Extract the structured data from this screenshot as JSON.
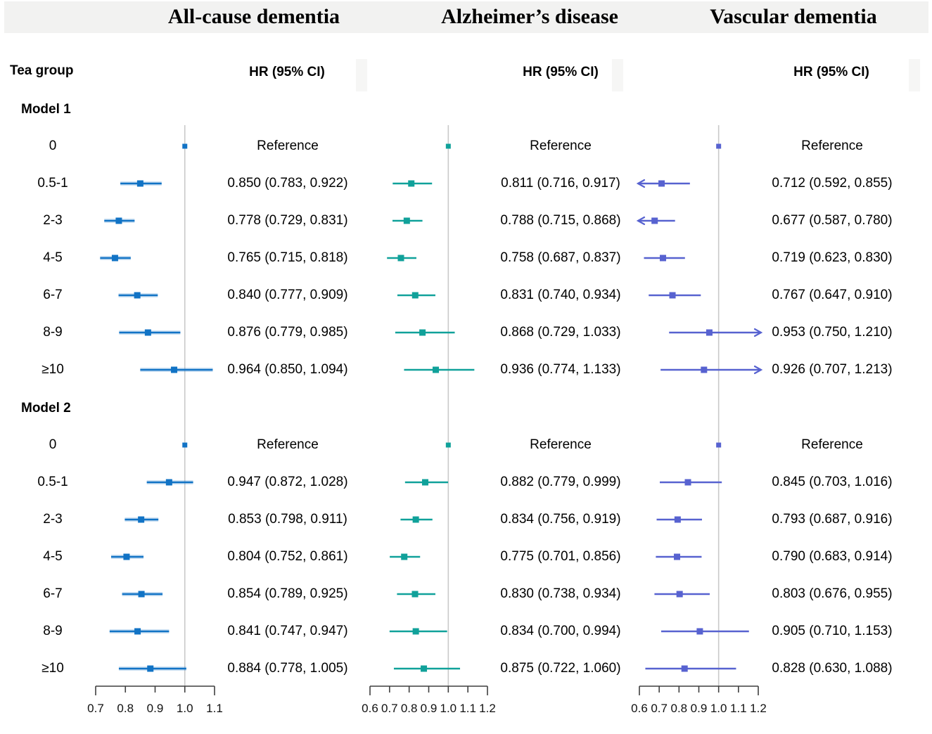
{
  "chart_data": {
    "type": "forest",
    "tea_group_header": "Tea group",
    "model_labels": [
      "Model 1",
      "Model 2"
    ],
    "tea_groups": [
      "0",
      "0.5-1",
      "2-3",
      "4-5",
      "6-7",
      "8-9",
      "≥10"
    ],
    "reference_line_color": "#c9c9c9",
    "axis_color": "#3f3f3f",
    "panels": [
      {
        "title": "All-cause dementia",
        "hr_header": "HR (95% CI)",
        "color": "#1173c5",
        "axis": {
          "min": 0.7,
          "max": 1.1,
          "ref": 1.0,
          "tick_labels": [
            "0.7",
            "0.8",
            "0.9",
            "1.0",
            "1.1"
          ]
        },
        "models": [
          {
            "label": "Model 1",
            "rows": [
              {
                "ref": true,
                "label": "Reference"
              },
              {
                "est": 0.85,
                "lo": 0.783,
                "hi": 0.922,
                "label": "0.850 (0.783, 0.922)"
              },
              {
                "est": 0.778,
                "lo": 0.729,
                "hi": 0.831,
                "label": "0.778 (0.729, 0.831)"
              },
              {
                "est": 0.765,
                "lo": 0.715,
                "hi": 0.818,
                "label": "0.765 (0.715, 0.818)"
              },
              {
                "est": 0.84,
                "lo": 0.777,
                "hi": 0.909,
                "label": "0.840 (0.777, 0.909)"
              },
              {
                "est": 0.876,
                "lo": 0.779,
                "hi": 0.985,
                "label": "0.876 (0.779, 0.985)"
              },
              {
                "est": 0.964,
                "lo": 0.85,
                "hi": 1.094,
                "label": "0.964 (0.850, 1.094)"
              }
            ]
          },
          {
            "label": "Model 2",
            "rows": [
              {
                "ref": true,
                "label": "Reference"
              },
              {
                "est": 0.947,
                "lo": 0.872,
                "hi": 1.028,
                "label": "0.947 (0.872, 1.028)"
              },
              {
                "est": 0.853,
                "lo": 0.798,
                "hi": 0.911,
                "label": "0.853 (0.798, 0.911)"
              },
              {
                "est": 0.804,
                "lo": 0.752,
                "hi": 0.861,
                "label": "0.804 (0.752, 0.861)"
              },
              {
                "est": 0.854,
                "lo": 0.789,
                "hi": 0.925,
                "label": "0.854 (0.789, 0.925)"
              },
              {
                "est": 0.841,
                "lo": 0.747,
                "hi": 0.947,
                "label": "0.841 (0.747, 0.947)"
              },
              {
                "est": 0.884,
                "lo": 0.778,
                "hi": 1.005,
                "label": "0.884 (0.778, 1.005)"
              }
            ]
          }
        ]
      },
      {
        "title": "Alzheimer’s disease",
        "hr_header": "HR (95% CI)",
        "color": "#10a19a",
        "axis": {
          "min": 0.6,
          "max": 1.2,
          "ref": 1.0,
          "tick_labels": [
            "0.6",
            "0.7",
            "0.8",
            "0.9",
            "1.0",
            "1.1",
            "1.2"
          ]
        },
        "models": [
          {
            "label": "Model 1",
            "rows": [
              {
                "ref": true,
                "label": "Reference"
              },
              {
                "est": 0.811,
                "lo": 0.716,
                "hi": 0.917,
                "label": "0.811 (0.716, 0.917)"
              },
              {
                "est": 0.788,
                "lo": 0.715,
                "hi": 0.868,
                "label": "0.788 (0.715, 0.868)"
              },
              {
                "est": 0.758,
                "lo": 0.687,
                "hi": 0.837,
                "label": "0.758 (0.687, 0.837)"
              },
              {
                "est": 0.831,
                "lo": 0.74,
                "hi": 0.934,
                "label": "0.831 (0.740, 0.934)"
              },
              {
                "est": 0.868,
                "lo": 0.729,
                "hi": 1.033,
                "label": "0.868 (0.729, 1.033)"
              },
              {
                "est": 0.936,
                "lo": 0.774,
                "hi": 1.133,
                "label": "0.936 (0.774, 1.133)"
              }
            ]
          },
          {
            "label": "Model 2",
            "rows": [
              {
                "ref": true,
                "label": "Reference"
              },
              {
                "est": 0.882,
                "lo": 0.779,
                "hi": 0.999,
                "label": "0.882 (0.779, 0.999)"
              },
              {
                "est": 0.834,
                "lo": 0.756,
                "hi": 0.919,
                "label": "0.834 (0.756, 0.919)"
              },
              {
                "est": 0.775,
                "lo": 0.701,
                "hi": 0.856,
                "label": "0.775 (0.701, 0.856)"
              },
              {
                "est": 0.83,
                "lo": 0.738,
                "hi": 0.934,
                "label": "0.830 (0.738, 0.934)"
              },
              {
                "est": 0.834,
                "lo": 0.7,
                "hi": 0.994,
                "label": "0.834 (0.700, 0.994)"
              },
              {
                "est": 0.875,
                "lo": 0.722,
                "hi": 1.06,
                "label": "0.875 (0.722, 1.060)"
              }
            ]
          }
        ]
      },
      {
        "title": "Vascular dementia",
        "hr_header": "HR (95% CI)",
        "color": "#5762d0",
        "axis": {
          "min": 0.6,
          "max": 1.2,
          "ref": 1.0,
          "tick_labels": [
            "0.6",
            "0.7",
            "0.8",
            "0.9",
            "1.0",
            "1.1",
            "1.2"
          ]
        },
        "models": [
          {
            "label": "Model 1",
            "rows": [
              {
                "ref": true,
                "label": "Reference"
              },
              {
                "est": 0.712,
                "lo": 0.592,
                "hi": 0.855,
                "label": "0.712 (0.592, 0.855)"
              },
              {
                "est": 0.677,
                "lo": 0.587,
                "hi": 0.78,
                "label": "0.677 (0.587, 0.780)"
              },
              {
                "est": 0.719,
                "lo": 0.623,
                "hi": 0.83,
                "label": "0.719 (0.623, 0.830)"
              },
              {
                "est": 0.767,
                "lo": 0.647,
                "hi": 0.91,
                "label": "0.767 (0.647, 0.910)"
              },
              {
                "est": 0.953,
                "lo": 0.75,
                "hi": 1.21,
                "label": "0.953 (0.750, 1.210)"
              },
              {
                "est": 0.926,
                "lo": 0.707,
                "hi": 1.213,
                "label": "0.926 (0.707, 1.213)"
              }
            ]
          },
          {
            "label": "Model 2",
            "rows": [
              {
                "ref": true,
                "label": "Reference"
              },
              {
                "est": 0.845,
                "lo": 0.703,
                "hi": 1.016,
                "label": "0.845 (0.703, 1.016)"
              },
              {
                "est": 0.793,
                "lo": 0.687,
                "hi": 0.916,
                "label": "0.793 (0.687, 0.916)"
              },
              {
                "est": 0.79,
                "lo": 0.683,
                "hi": 0.914,
                "label": "0.790 (0.683, 0.914)"
              },
              {
                "est": 0.803,
                "lo": 0.676,
                "hi": 0.955,
                "label": "0.803 (0.676, 0.955)"
              },
              {
                "est": 0.905,
                "lo": 0.71,
                "hi": 1.153,
                "label": "0.905 (0.710, 1.153)"
              },
              {
                "est": 0.828,
                "lo": 0.63,
                "hi": 1.088,
                "label": "0.828 (0.630, 1.088)"
              }
            ]
          }
        ]
      }
    ]
  }
}
